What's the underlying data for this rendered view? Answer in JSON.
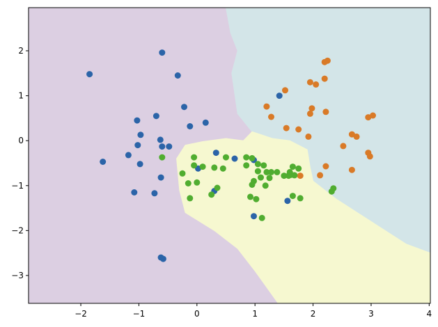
{
  "chart_data": {
    "type": "scatter",
    "title": "",
    "xlabel": "",
    "ylabel": "",
    "xlim": [
      -2.9,
      4.02
    ],
    "ylim": [
      -3.62,
      2.96
    ],
    "xticks": [
      -2,
      -1,
      0,
      1,
      2,
      3,
      4
    ],
    "yticks": [
      -3,
      -2,
      -1,
      0,
      1,
      2
    ],
    "grid": false,
    "legend": "none",
    "regions": [
      {
        "name": "class-0-region",
        "color": "#dccfe2",
        "polygon": [
          [
            -2.9,
            2.96
          ],
          [
            0.5,
            2.96
          ],
          [
            0.58,
            2.4
          ],
          [
            0.7,
            2.0
          ],
          [
            0.6,
            1.5
          ],
          [
            0.7,
            0.6
          ],
          [
            0.95,
            0.2
          ],
          [
            0.8,
            0.0
          ],
          [
            0.5,
            0.05
          ],
          [
            0.1,
            -0.02
          ],
          [
            -0.2,
            -0.1
          ],
          [
            -0.35,
            -0.4
          ],
          [
            -0.3,
            -1.1
          ],
          [
            -0.2,
            -1.6
          ],
          [
            0.3,
            -2.0
          ],
          [
            0.7,
            -2.4
          ],
          [
            1.0,
            -2.9
          ],
          [
            1.4,
            -3.62
          ],
          [
            -2.9,
            -3.62
          ]
        ]
      },
      {
        "name": "class-1-region",
        "color": "#d3e5e8",
        "polygon": [
          [
            0.5,
            2.96
          ],
          [
            4.02,
            2.96
          ],
          [
            4.02,
            -2.5
          ],
          [
            3.6,
            -2.3
          ],
          [
            3.0,
            -1.8
          ],
          [
            2.4,
            -1.3
          ],
          [
            2.0,
            -0.9
          ],
          [
            1.95,
            -0.6
          ],
          [
            1.9,
            -0.2
          ],
          [
            1.6,
            0.0
          ],
          [
            1.3,
            0.05
          ],
          [
            0.95,
            0.2
          ],
          [
            0.7,
            0.6
          ],
          [
            0.6,
            1.5
          ],
          [
            0.7,
            2.0
          ],
          [
            0.58,
            2.4
          ]
        ]
      },
      {
        "name": "class-2-region",
        "color": "#f6f8d0",
        "polygon": [
          [
            -0.2,
            -0.1
          ],
          [
            0.1,
            -0.02
          ],
          [
            0.5,
            0.05
          ],
          [
            0.8,
            0.0
          ],
          [
            0.95,
            0.2
          ],
          [
            1.3,
            0.05
          ],
          [
            1.6,
            0.0
          ],
          [
            1.9,
            -0.2
          ],
          [
            1.95,
            -0.6
          ],
          [
            2.0,
            -0.9
          ],
          [
            2.4,
            -1.3
          ],
          [
            3.0,
            -1.8
          ],
          [
            3.6,
            -2.3
          ],
          [
            4.02,
            -2.5
          ],
          [
            4.02,
            -3.62
          ],
          [
            1.4,
            -3.62
          ],
          [
            1.0,
            -2.9
          ],
          [
            0.7,
            -2.4
          ],
          [
            0.3,
            -2.0
          ],
          [
            -0.2,
            -1.6
          ],
          [
            -0.3,
            -1.1
          ],
          [
            -0.35,
            -0.4
          ]
        ]
      }
    ],
    "series": [
      {
        "color": "#2b64a8",
        "points": [
          [
            -1.85,
            1.48
          ],
          [
            -0.6,
            1.96
          ],
          [
            -0.33,
            1.45
          ],
          [
            -0.22,
            0.75
          ],
          [
            -0.7,
            0.55
          ],
          [
            -1.03,
            0.45
          ],
          [
            -0.12,
            0.32
          ],
          [
            0.15,
            0.4
          ],
          [
            -0.97,
            0.13
          ],
          [
            -0.63,
            0.02
          ],
          [
            -1.02,
            -0.1
          ],
          [
            -0.6,
            -0.13
          ],
          [
            -0.48,
            -0.13
          ],
          [
            -1.18,
            -0.32
          ],
          [
            -1.62,
            -0.47
          ],
          [
            -0.98,
            -0.52
          ],
          [
            -0.62,
            -0.82
          ],
          [
            -1.08,
            -1.15
          ],
          [
            -0.73,
            -1.17
          ],
          [
            -0.62,
            -2.6
          ],
          [
            -0.58,
            -2.63
          ],
          [
            1.42,
            1.0
          ],
          [
            0.33,
            -0.27
          ],
          [
            0.02,
            -0.62
          ],
          [
            0.65,
            -0.4
          ],
          [
            0.98,
            -0.43
          ],
          [
            0.3,
            -1.12
          ],
          [
            1.56,
            -1.34
          ],
          [
            0.98,
            -1.68
          ]
        ]
      },
      {
        "color": "#d97a27",
        "points": [
          [
            2.2,
            1.75
          ],
          [
            2.25,
            1.78
          ],
          [
            1.52,
            1.12
          ],
          [
            1.95,
            1.3
          ],
          [
            2.05,
            1.25
          ],
          [
            2.2,
            1.38
          ],
          [
            1.2,
            0.76
          ],
          [
            1.98,
            0.72
          ],
          [
            1.95,
            0.6
          ],
          [
            2.22,
            0.64
          ],
          [
            1.28,
            0.53
          ],
          [
            2.95,
            0.52
          ],
          [
            3.03,
            0.56
          ],
          [
            1.54,
            0.28
          ],
          [
            1.75,
            0.25
          ],
          [
            1.92,
            0.09
          ],
          [
            2.67,
            0.14
          ],
          [
            2.75,
            0.09
          ],
          [
            2.52,
            -0.12
          ],
          [
            2.95,
            -0.27
          ],
          [
            2.98,
            -0.35
          ],
          [
            2.22,
            -0.57
          ],
          [
            2.67,
            -0.65
          ],
          [
            2.12,
            -0.77
          ],
          [
            1.78,
            -0.78
          ]
        ]
      },
      {
        "color": "#50ad30",
        "points": [
          [
            -0.6,
            -0.37
          ],
          [
            -0.05,
            -0.37
          ],
          [
            0.5,
            -0.37
          ],
          [
            0.85,
            -0.37
          ],
          [
            0.95,
            -0.39
          ],
          [
            1.05,
            -0.52
          ],
          [
            -0.05,
            -0.55
          ],
          [
            0.1,
            -0.58
          ],
          [
            0.3,
            -0.6
          ],
          [
            0.45,
            -0.62
          ],
          [
            0.85,
            -0.55
          ],
          [
            1.15,
            -0.55
          ],
          [
            -0.25,
            -0.73
          ],
          [
            1.05,
            -0.68
          ],
          [
            1.2,
            -0.7
          ],
          [
            1.28,
            -0.7
          ],
          [
            1.38,
            -0.7
          ],
          [
            1.65,
            -0.58
          ],
          [
            1.75,
            -0.62
          ],
          [
            1.6,
            -0.7
          ],
          [
            1.62,
            -0.76
          ],
          [
            1.58,
            -0.78
          ],
          [
            1.68,
            -0.77
          ],
          [
            1.5,
            -0.78
          ],
          [
            1.1,
            -0.82
          ],
          [
            1.25,
            -0.83
          ],
          [
            0.98,
            -0.9
          ],
          [
            0.95,
            -0.98
          ],
          [
            1.18,
            -1.0
          ],
          [
            0.0,
            -0.93
          ],
          [
            -0.15,
            -0.95
          ],
          [
            0.35,
            -1.05
          ],
          [
            0.25,
            -1.2
          ],
          [
            -0.12,
            -1.28
          ],
          [
            0.92,
            -1.25
          ],
          [
            1.02,
            -1.3
          ],
          [
            1.65,
            -1.23
          ],
          [
            1.78,
            -1.28
          ],
          [
            2.32,
            -1.13
          ],
          [
            2.35,
            -1.06
          ],
          [
            1.12,
            -1.72
          ]
        ]
      }
    ]
  }
}
